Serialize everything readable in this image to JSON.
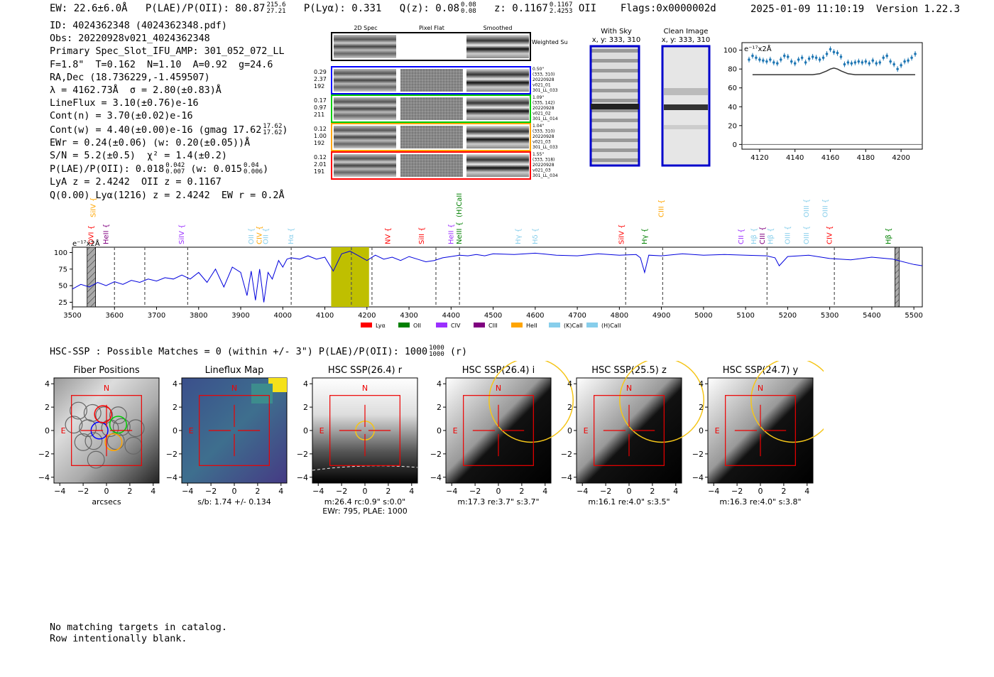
{
  "header": {
    "ew": "EW: 22.6±6.0Å",
    "plae_label": "P(LAE)/P(OII): 80.87",
    "plae_hi": "215.6",
    "plae_lo": "27.21",
    "plya": "P(Lyα): 0.331",
    "qz_label": "Q(z): 0.08",
    "qz_hi": "0.08",
    "qz_lo": "0.08",
    "z_label": "z: 0.1167",
    "z_hi": "0.1167",
    "z_lo": "2.4253",
    "z_line": "OII",
    "flags": "Flags:0x0000002d",
    "datetime": "2025-01-09 11:10:19",
    "version": "Version 1.22.3"
  },
  "info": {
    "id": "ID: 4024362348 (4024362348.pdf)",
    "obs": "Obs: 20220928v021_4024362348",
    "primary": "Primary Spec_Slot_IFU_AMP: 301_052_072_LL",
    "params": "F=1.8\"  T=0.162  N=1.10  A=0.92  g=24.6",
    "radec": "RA,Dec (18.736229,-1.459507)",
    "lambda": "λ = 4162.73Å  σ = 2.80(±0.83)Å",
    "lineflux": "LineFlux = 3.10(±0.76)e-16",
    "cont_n": "Cont(n) = 3.70(±0.02)e-16",
    "cont_w": "Cont(w) = 4.40(±0.00)e-16 (gmag 17.62",
    "gmag_hi": "17.62",
    "gmag_lo": "17.62",
    "ewr": "EWr = 0.24(±0.06) (w: 0.20(±0.05))Å",
    "sn": "S/N = 5.2(±0.5)  χ² = 1.4(±0.2)",
    "plae2": "P(LAE)/P(OII): 0.018",
    "plae2_hi": "0.042",
    "plae2_lo": "0.007",
    "plae2_w": "(w: 0.015",
    "plae2_w_hi": "0.04",
    "plae2_w_lo": "0.006",
    "lya_z": "LyA z = 2.4242  OII z = 0.1167",
    "q_line": "Q(0.00) Lyα(1216) z = 2.4242  EW r = 0.2Å"
  },
  "cutouts": {
    "headers": [
      "2D Spec",
      "Pixel Flat",
      "Smoothed"
    ],
    "weighted": "Weighted Sum",
    "rows": [
      {
        "vals": [
          "0.29",
          "2.37",
          "192"
        ],
        "meta": [
          "0.50\"",
          "(333, 310)",
          "20220928",
          "v021_01",
          "301_LL_033"
        ],
        "color": "#0000ff"
      },
      {
        "vals": [
          "0.17",
          "0.97",
          "211"
        ],
        "meta": [
          "1.09\"",
          "(335, 142)",
          "20220928",
          "v021_02",
          "301_LL_014"
        ],
        "color": "#00cc00"
      },
      {
        "vals": [
          "0.12",
          "1.00",
          "192"
        ],
        "meta": [
          "1.04\"",
          "(333, 310)",
          "20220928",
          "v021_03",
          "301_LL_033"
        ],
        "color": "#ffa500"
      },
      {
        "vals": [
          "0.12",
          "2.01",
          "191"
        ],
        "meta": [
          "1.55\"",
          "(333, 318)",
          "20220928",
          "v021_03",
          "301_LL_034"
        ],
        "color": "#ff0000"
      }
    ]
  },
  "sky_panels": [
    {
      "title": "With Sky",
      "coords": "x, y: 333, 310"
    },
    {
      "title": "Clean Image",
      "coords": "x, y: 333, 310"
    }
  ],
  "zoom_chart": {
    "unit": "e⁻¹⁷x2Å",
    "xticks": [
      "4120",
      "4140",
      "4160",
      "4180",
      "4200"
    ],
    "yticks": [
      "0",
      "20",
      "40",
      "60",
      "80",
      "100"
    ]
  },
  "chart_data": [
    {
      "type": "scatter",
      "title": "",
      "xlabel": "",
      "ylabel": "e⁻¹⁷x2Å",
      "xlim": [
        4110,
        4212
      ],
      "ylim": [
        -5,
        108
      ],
      "x": [
        4114,
        4116,
        4118,
        4120,
        4122,
        4124,
        4126,
        4128,
        4130,
        4132,
        4134,
        4136,
        4138,
        4140,
        4142,
        4144,
        4146,
        4148,
        4150,
        4152,
        4154,
        4156,
        4158,
        4160,
        4162,
        4164,
        4166,
        4168,
        4170,
        4172,
        4174,
        4176,
        4178,
        4180,
        4182,
        4184,
        4186,
        4188,
        4190,
        4192,
        4194,
        4196,
        4198,
        4200,
        4202,
        4204,
        4206,
        4208
      ],
      "values": [
        90,
        94,
        92,
        90,
        89,
        88,
        90,
        87,
        86,
        90,
        94,
        93,
        88,
        86,
        90,
        92,
        87,
        91,
        93,
        92,
        90,
        92,
        96,
        101,
        98,
        97,
        93,
        85,
        87,
        86,
        87,
        88,
        87,
        88,
        86,
        89,
        86,
        87,
        92,
        94,
        88,
        85,
        80,
        84,
        88,
        89,
        92,
        96
      ],
      "model_x": [
        4116,
        4150,
        4154,
        4158,
        4160,
        4162,
        4164,
        4166,
        4170,
        4174,
        4208
      ],
      "model": [
        74,
        74,
        75,
        78,
        80,
        81,
        80,
        78,
        75,
        74,
        74
      ]
    },
    {
      "type": "line",
      "title": "",
      "xlabel": "",
      "ylabel": "e⁻¹⁷x2Å",
      "xlim": [
        3500,
        5520
      ],
      "ylim": [
        18,
        108
      ],
      "xticks": [
        "3500",
        "3600",
        "3700",
        "3800",
        "3900",
        "4000",
        "4100",
        "4200",
        "4300",
        "4400",
        "4500",
        "4600",
        "4700",
        "4800",
        "4900",
        "5000",
        "5100",
        "5200",
        "5300",
        "5400",
        "5500"
      ],
      "yticks": [
        "25",
        "50",
        "75",
        "100"
      ],
      "x": [
        3500,
        3520,
        3540,
        3560,
        3580,
        3600,
        3620,
        3640,
        3660,
        3680,
        3700,
        3720,
        3740,
        3760,
        3780,
        3800,
        3820,
        3840,
        3860,
        3880,
        3900,
        3915,
        3925,
        3935,
        3945,
        3955,
        3965,
        3975,
        3990,
        4000,
        4010,
        4020,
        4040,
        4060,
        4080,
        4100,
        4120,
        4140,
        4160,
        4180,
        4200,
        4220,
        4240,
        4260,
        4280,
        4300,
        4320,
        4340,
        4360,
        4380,
        4400,
        4420,
        4440,
        4460,
        4480,
        4500,
        4550,
        4600,
        4650,
        4700,
        4750,
        4800,
        4840,
        4850,
        4860,
        4870,
        4900,
        4950,
        5000,
        5050,
        5100,
        5150,
        5170,
        5180,
        5200,
        5250,
        5300,
        5350,
        5400,
        5450,
        5500,
        5520
      ],
      "values": [
        45,
        52,
        48,
        55,
        50,
        56,
        52,
        58,
        55,
        60,
        57,
        62,
        60,
        66,
        60,
        70,
        55,
        75,
        48,
        78,
        70,
        35,
        72,
        28,
        75,
        25,
        70,
        60,
        88,
        78,
        90,
        92,
        90,
        95,
        90,
        93,
        72,
        98,
        102,
        95,
        88,
        96,
        90,
        93,
        88,
        94,
        90,
        86,
        88,
        92,
        94,
        96,
        95,
        97,
        95,
        98,
        97,
        99,
        96,
        95,
        98,
        96,
        97,
        92,
        70,
        96,
        95,
        98,
        96,
        97,
        96,
        95,
        92,
        80,
        94,
        96,
        91,
        89,
        93,
        90,
        82,
        80
      ],
      "shaded": [
        [
          4115,
          4205
        ]
      ],
      "dashed_x": [
        3600,
        3672,
        3774,
        4020,
        4163,
        4212,
        4364,
        4420,
        4815,
        4903,
        5151,
        5311
      ],
      "hatched": [
        [
          3535,
          3555
        ],
        [
          5455,
          5465
        ]
      ],
      "legend": [
        "Lyα",
        "OII",
        "CIV",
        "CIII",
        "HeII",
        "(K)CaII",
        "(H)CaII"
      ],
      "legend_colors": [
        "#ff0000",
        "#008000",
        "#9b30ff",
        "#800080",
        "#ffa500",
        "#87ceeb",
        "#87ceeb"
      ],
      "line_labels": [
        {
          "label": "OVI",
          "x": 3545,
          "color": "#ff0000",
          "row": 1
        },
        {
          "label": "SiIV",
          "x": 3550,
          "color": "#ffa500",
          "row": 0
        },
        {
          "label": "HeII",
          "x": 3580,
          "color": "#800080",
          "row": 1
        },
        {
          "label": "SiIV",
          "x": 3760,
          "color": "#9b30ff",
          "row": 1
        },
        {
          "label": "OII",
          "x": 3925,
          "color": "#87ceeb",
          "row": 1
        },
        {
          "label": "CIV",
          "x": 3945,
          "color": "#ffa500",
          "row": 1
        },
        {
          "label": "OII",
          "x": 3960,
          "color": "#87ceeb",
          "row": 1
        },
        {
          "label": "Hα",
          "x": 4020,
          "color": "#87ceeb",
          "row": 1
        },
        {
          "label": "NV",
          "x": 4250,
          "color": "#ff0000",
          "row": 1
        },
        {
          "label": "(H)CaII",
          "x": 4420,
          "color": "#008000",
          "row": 0
        },
        {
          "label": "SiII",
          "x": 4330,
          "color": "#ff0000",
          "row": 1
        },
        {
          "label": "HeII",
          "x": 4400,
          "color": "#9b30ff",
          "row": 1
        },
        {
          "label": "NeIII",
          "x": 4420,
          "color": "#008000",
          "row": 1
        },
        {
          "label": "Hγ",
          "x": 4560,
          "color": "#87ceeb",
          "row": 1
        },
        {
          "label": "Hδ",
          "x": 4600,
          "color": "#87ceeb",
          "row": 1
        },
        {
          "label": "SiIV",
          "x": 4805,
          "color": "#ff0000",
          "row": 1
        },
        {
          "label": "CIII",
          "x": 4900,
          "color": "#ffa500",
          "row": 0
        },
        {
          "label": "Hγ",
          "x": 4860,
          "color": "#008000",
          "row": 1
        },
        {
          "label": "CII",
          "x": 5090,
          "color": "#9b30ff",
          "row": 1
        },
        {
          "label": "Hβ",
          "x": 5120,
          "color": "#87ceeb",
          "row": 1
        },
        {
          "label": "CIII",
          "x": 5140,
          "color": "#800080",
          "row": 1
        },
        {
          "label": "Hβ",
          "x": 5160,
          "color": "#87ceeb",
          "row": 1
        },
        {
          "label": "OIII",
          "x": 5200,
          "color": "#87ceeb",
          "row": 1
        },
        {
          "label": "OIII",
          "x": 5245,
          "color": "#87ceeb",
          "row": 0
        },
        {
          "label": "OIII",
          "x": 5245,
          "color": "#87ceeb",
          "row": 1
        },
        {
          "label": "OIII",
          "x": 5290,
          "color": "#87ceeb",
          "row": 0
        },
        {
          "label": "CIV",
          "x": 5300,
          "color": "#ff0000",
          "row": 1
        },
        {
          "label": "Hβ",
          "x": 5440,
          "color": "#008000",
          "row": 1
        }
      ]
    }
  ],
  "hsc": {
    "title": "HSC-SSP : Possible Matches = 0 (within +/- 3\")  P(LAE)/P(OII): 1000",
    "hi": "1000",
    "lo": "1000",
    "band": "(r)",
    "panels": [
      {
        "title": "Fiber Positions",
        "caption": "arcsecs",
        "caption2": ""
      },
      {
        "title": "Lineflux Map",
        "caption": "s/b: 1.74 +/- 0.134",
        "caption2": ""
      },
      {
        "title": "HSC SSP(26.4) r",
        "caption": "m:26.4 rc:0.9\"  s:0.0\"",
        "caption2": "EWr: 795, PLAE: 1000"
      },
      {
        "title": "HSC SSP(26.4) i",
        "caption": "m:17.3  re:3.7\"  s:3.7\"",
        "caption2": ""
      },
      {
        "title": "HSC SSP(25.5) z",
        "caption": "m:16.1  re:4.0\"  s:3.5\"",
        "caption2": ""
      },
      {
        "title": "HSC SSP(24.7) y",
        "caption": "m:16.3  re:4.0\"  s:3.8\"",
        "caption2": ""
      }
    ],
    "axis_ticks": [
      "−4",
      "−2",
      "0",
      "2",
      "4"
    ],
    "N": "N",
    "E": "E"
  },
  "footer": {
    "line1": "No matching targets in catalog.",
    "line2": "Row intentionally blank."
  }
}
